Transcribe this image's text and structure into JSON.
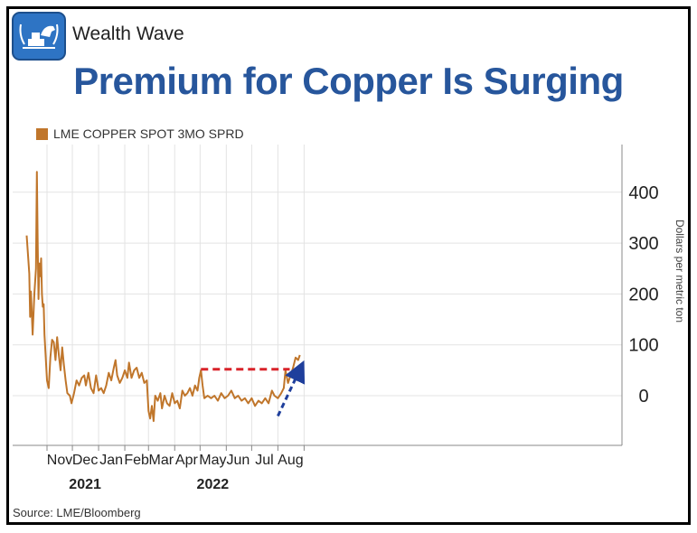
{
  "brand": {
    "name": "Wealth Wave",
    "logo": "bull-and-bars-logo"
  },
  "title": "Premium for Copper Is Surging",
  "source": "Source:  LME/Bloomberg",
  "colors": {
    "series": "#c0762b",
    "title": "#27569c",
    "dashed_level": "#d9232a",
    "trend_arrow": "#1f3f9c"
  },
  "chart_data": {
    "type": "line",
    "title": "Premium for Copper Is Surging",
    "ylabel": "Dollars per metric ton",
    "ylim": [
      -100,
      500
    ],
    "yticks": [
      0,
      100,
      200,
      300,
      400
    ],
    "xticks": [
      "Nov",
      "Dec",
      "Jan",
      "Feb",
      "Mar",
      "Apr",
      "May",
      "Jun",
      "Jul",
      "Aug"
    ],
    "year_labels": [
      {
        "label": "2021",
        "at": "Dec"
      },
      {
        "label": "2022",
        "at": "May"
      }
    ],
    "legend": "top-left",
    "grid": true,
    "series": [
      {
        "name": "LME COPPER SPOT 3MO SPRD",
        "points": [
          [
            "2021-10-08",
            315
          ],
          [
            "2021-10-11",
            240
          ],
          [
            "2021-10-12",
            155
          ],
          [
            "2021-10-13",
            205
          ],
          [
            "2021-10-15",
            120
          ],
          [
            "2021-10-17",
            200
          ],
          [
            "2021-10-19",
            250
          ],
          [
            "2021-10-20",
            440
          ],
          [
            "2021-10-21",
            300
          ],
          [
            "2021-10-22",
            190
          ],
          [
            "2021-10-23",
            260
          ],
          [
            "2021-10-24",
            235
          ],
          [
            "2021-10-25",
            270
          ],
          [
            "2021-10-26",
            200
          ],
          [
            "2021-10-27",
            175
          ],
          [
            "2021-10-28",
            180
          ],
          [
            "2021-10-29",
            120
          ],
          [
            "2021-11-01",
            30
          ],
          [
            "2021-11-03",
            15
          ],
          [
            "2021-11-05",
            75
          ],
          [
            "2021-11-07",
            110
          ],
          [
            "2021-11-09",
            105
          ],
          [
            "2021-11-11",
            70
          ],
          [
            "2021-11-13",
            115
          ],
          [
            "2021-11-15",
            80
          ],
          [
            "2021-11-17",
            50
          ],
          [
            "2021-11-19",
            95
          ],
          [
            "2021-11-21",
            60
          ],
          [
            "2021-11-23",
            30
          ],
          [
            "2021-11-25",
            5
          ],
          [
            "2021-11-28",
            0
          ],
          [
            "2021-11-30",
            -15
          ],
          [
            "2021-12-03",
            5
          ],
          [
            "2021-12-06",
            30
          ],
          [
            "2021-12-09",
            20
          ],
          [
            "2021-12-12",
            35
          ],
          [
            "2021-12-15",
            40
          ],
          [
            "2021-12-17",
            20
          ],
          [
            "2021-12-20",
            45
          ],
          [
            "2021-12-23",
            15
          ],
          [
            "2021-12-26",
            5
          ],
          [
            "2021-12-29",
            40
          ],
          [
            "2022-01-01",
            10
          ],
          [
            "2022-01-04",
            15
          ],
          [
            "2022-01-07",
            5
          ],
          [
            "2022-01-10",
            20
          ],
          [
            "2022-01-13",
            45
          ],
          [
            "2022-01-16",
            30
          ],
          [
            "2022-01-19",
            55
          ],
          [
            "2022-01-21",
            70
          ],
          [
            "2022-01-23",
            40
          ],
          [
            "2022-01-26",
            25
          ],
          [
            "2022-01-29",
            35
          ],
          [
            "2022-02-01",
            50
          ],
          [
            "2022-02-04",
            35
          ],
          [
            "2022-02-06",
            65
          ],
          [
            "2022-02-09",
            35
          ],
          [
            "2022-02-12",
            50
          ],
          [
            "2022-02-15",
            55
          ],
          [
            "2022-02-18",
            35
          ],
          [
            "2022-02-21",
            45
          ],
          [
            "2022-02-24",
            25
          ],
          [
            "2022-02-27",
            30
          ],
          [
            "2022-03-01",
            -30
          ],
          [
            "2022-03-03",
            -45
          ],
          [
            "2022-03-05",
            -20
          ],
          [
            "2022-03-07",
            -50
          ],
          [
            "2022-03-09",
            0
          ],
          [
            "2022-03-12",
            -10
          ],
          [
            "2022-03-15",
            5
          ],
          [
            "2022-03-17",
            -25
          ],
          [
            "2022-03-20",
            0
          ],
          [
            "2022-03-23",
            -15
          ],
          [
            "2022-03-26",
            -20
          ],
          [
            "2022-03-29",
            5
          ],
          [
            "2022-04-01",
            -15
          ],
          [
            "2022-04-04",
            -10
          ],
          [
            "2022-04-07",
            -25
          ],
          [
            "2022-04-10",
            10
          ],
          [
            "2022-04-13",
            0
          ],
          [
            "2022-04-16",
            5
          ],
          [
            "2022-04-19",
            15
          ],
          [
            "2022-04-22",
            0
          ],
          [
            "2022-04-25",
            20
          ],
          [
            "2022-04-28",
            10
          ],
          [
            "2022-04-30",
            35
          ],
          [
            "2022-05-02",
            50
          ],
          [
            "2022-05-04",
            20
          ],
          [
            "2022-05-06",
            -5
          ],
          [
            "2022-05-10",
            0
          ],
          [
            "2022-05-14",
            -5
          ],
          [
            "2022-05-18",
            0
          ],
          [
            "2022-05-22",
            -10
          ],
          [
            "2022-05-26",
            5
          ],
          [
            "2022-05-30",
            -5
          ],
          [
            "2022-06-03",
            0
          ],
          [
            "2022-06-07",
            10
          ],
          [
            "2022-06-11",
            -5
          ],
          [
            "2022-06-15",
            0
          ],
          [
            "2022-06-19",
            -10
          ],
          [
            "2022-06-23",
            -5
          ],
          [
            "2022-06-27",
            -15
          ],
          [
            "2022-07-01",
            -5
          ],
          [
            "2022-07-05",
            -20
          ],
          [
            "2022-07-09",
            -10
          ],
          [
            "2022-07-13",
            -15
          ],
          [
            "2022-07-17",
            -5
          ],
          [
            "2022-07-21",
            -15
          ],
          [
            "2022-07-25",
            10
          ],
          [
            "2022-07-28",
            0
          ],
          [
            "2022-08-01",
            -5
          ],
          [
            "2022-08-05",
            5
          ],
          [
            "2022-08-08",
            15
          ],
          [
            "2022-08-10",
            50
          ],
          [
            "2022-08-13",
            25
          ],
          [
            "2022-08-16",
            40
          ],
          [
            "2022-08-19",
            55
          ],
          [
            "2022-08-22",
            75
          ],
          [
            "2022-08-25",
            70
          ],
          [
            "2022-08-27",
            80
          ]
        ]
      }
    ],
    "annotations": [
      {
        "type": "dashed-horizontal-line",
        "y": 52,
        "x_start": "2022-05-02",
        "x_end": "2022-08-15",
        "color": "#d9232a"
      },
      {
        "type": "dashed-arrow",
        "from": [
          "2022-08-01",
          -40
        ],
        "to": [
          "2022-08-28",
          55
        ],
        "color": "#1f3f9c"
      }
    ]
  }
}
